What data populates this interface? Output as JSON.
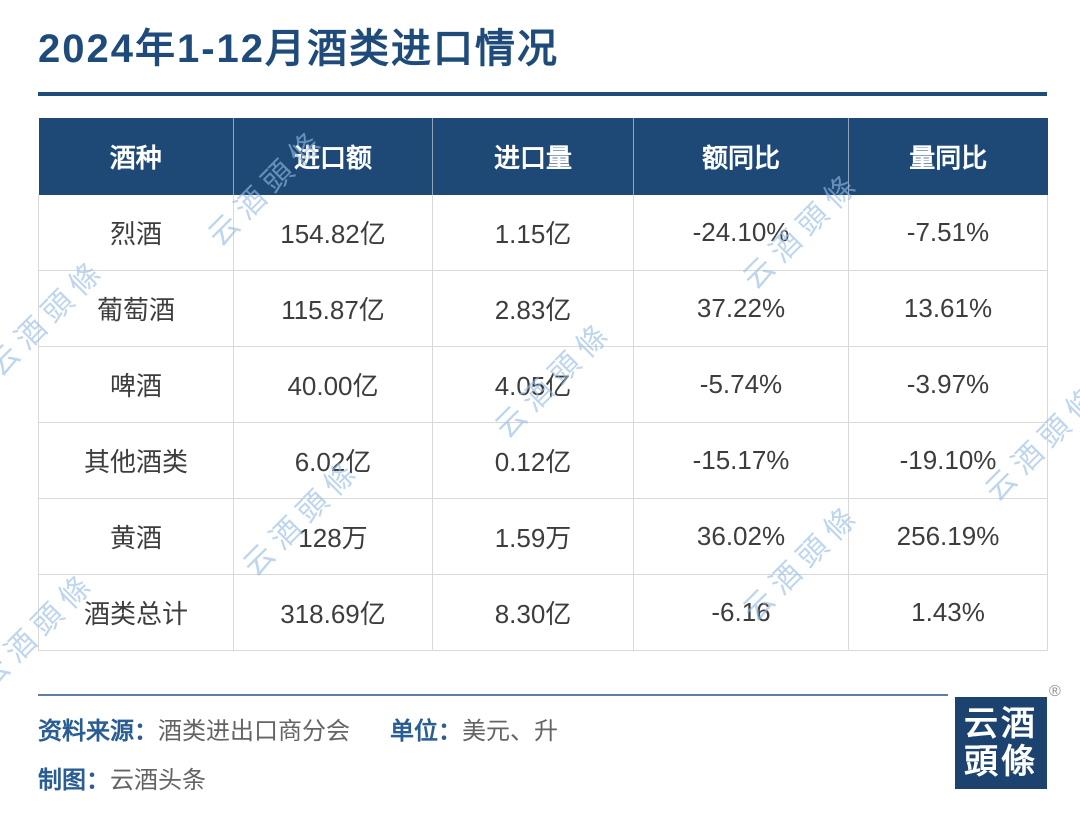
{
  "title": "2024年1-12月酒类进口情况",
  "watermark": "云酒頭條",
  "chart_data": {
    "type": "table",
    "title": "2024年1-12月酒类进口情况",
    "columns": [
      "酒种",
      "进口额",
      "进口量",
      "额同比",
      "量同比"
    ],
    "rows": [
      [
        "烈酒",
        "154.82亿",
        "1.15亿",
        "-24.10%",
        "-7.51%"
      ],
      [
        "葡萄酒",
        "115.87亿",
        "2.83亿",
        "37.22%",
        "13.61%"
      ],
      [
        "啤酒",
        "40.00亿",
        "4.05亿",
        "-5.74%",
        "-3.97%"
      ],
      [
        "其他酒类",
        "6.02亿",
        "0.12亿",
        "-15.17%",
        "-19.10%"
      ],
      [
        "黄酒",
        "128万",
        "1.59万",
        "36.02%",
        "256.19%"
      ],
      [
        "酒类总计",
        "318.69亿",
        "8.30亿",
        "-6.16",
        "1.43%"
      ]
    ],
    "units": "美元、升",
    "source": "酒类进出口商分会"
  },
  "footer": {
    "source_label": "资料来源：",
    "source_value": "酒类进出口商分会",
    "unit_label": "单位：",
    "unit_value": "美元、升",
    "credit_label": "制图：",
    "credit_value": "云酒头条"
  },
  "logo": {
    "line1": "云酒",
    "line2": "頭條",
    "registered": "®"
  },
  "colors": {
    "title_blue": "#1f4b7a",
    "header_bg": "#1e4977",
    "grid_gray": "#d9d9d9",
    "footer_label_blue": "#2a5d93",
    "footer_text_gray": "#646464",
    "watermark_blue": "#96bce3",
    "logo_bg": "#1c4270"
  }
}
